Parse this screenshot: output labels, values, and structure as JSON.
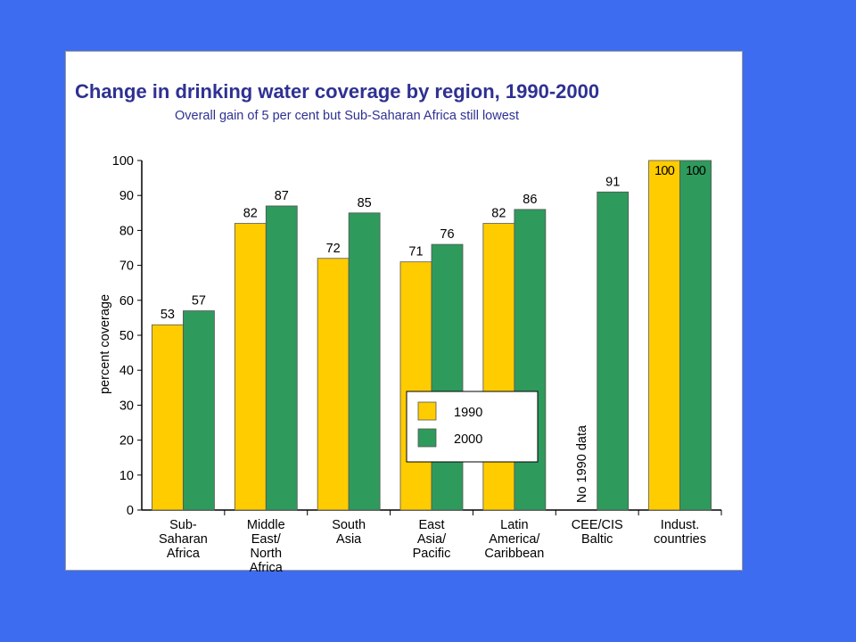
{
  "colors": {
    "background": "#3d6cf0",
    "panel": "#ffffff",
    "title": "#2e3192",
    "series_1990": "#ffcc00",
    "series_2000": "#2e9a5c"
  },
  "chart_data": {
    "type": "bar",
    "title": "Change in drinking water coverage by region, 1990-2000",
    "subtitle": "Overall gain of 5 per cent but Sub-Saharan Africa still lowest",
    "ylabel": "percent coverage",
    "xlabel": "",
    "ylim": [
      0,
      100
    ],
    "yticks": [
      0,
      10,
      20,
      30,
      40,
      50,
      60,
      70,
      80,
      90,
      100
    ],
    "grid": false,
    "legend_position": "center-right",
    "categories": [
      [
        "Sub-",
        "Saharan",
        "Africa"
      ],
      [
        "Middle",
        "East/",
        "North",
        "Africa"
      ],
      [
        "South",
        "Asia"
      ],
      [
        "East",
        "Asia/",
        "Pacific"
      ],
      [
        "Latin",
        "America/",
        "Caribbean"
      ],
      [
        "CEE/CIS",
        "Baltic"
      ],
      [
        "Indust.",
        "countries"
      ]
    ],
    "series": [
      {
        "name": "1990",
        "values": [
          53,
          82,
          72,
          71,
          82,
          null,
          100
        ]
      },
      {
        "name": "2000",
        "values": [
          57,
          87,
          85,
          76,
          86,
          91,
          100
        ]
      }
    ],
    "annotations": [
      {
        "text": "No 1990 data",
        "category_index": 5,
        "rotation": "vertical"
      }
    ]
  }
}
